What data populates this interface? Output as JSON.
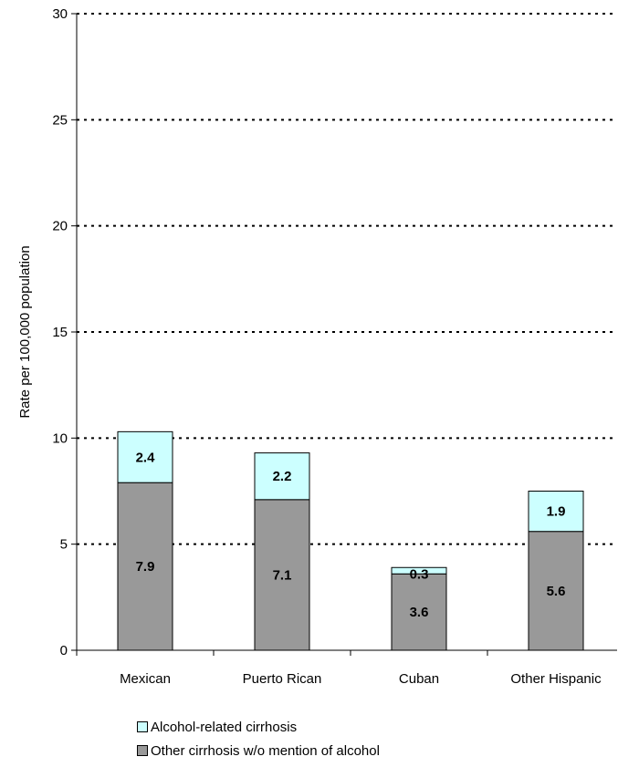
{
  "chart_data": {
    "type": "bar",
    "stacked": true,
    "categories": [
      "Mexican",
      "Puerto Rican",
      "Cuban",
      "Other Hispanic"
    ],
    "series": [
      {
        "name": "Other cirrhosis w/o mention of alcohol",
        "values": [
          7.9,
          7.1,
          3.6,
          5.6
        ],
        "color": "#999999"
      },
      {
        "name": "Alcohol-related cirrhosis",
        "values": [
          2.4,
          2.2,
          0.3,
          1.9
        ],
        "color": "#ccffff"
      }
    ],
    "ylabel": "Rate per 100,000 population",
    "ylim": [
      0,
      30
    ],
    "yticks": [
      0,
      5,
      10,
      15,
      20,
      25,
      30
    ],
    "grid": true,
    "legend_position": "bottom"
  }
}
